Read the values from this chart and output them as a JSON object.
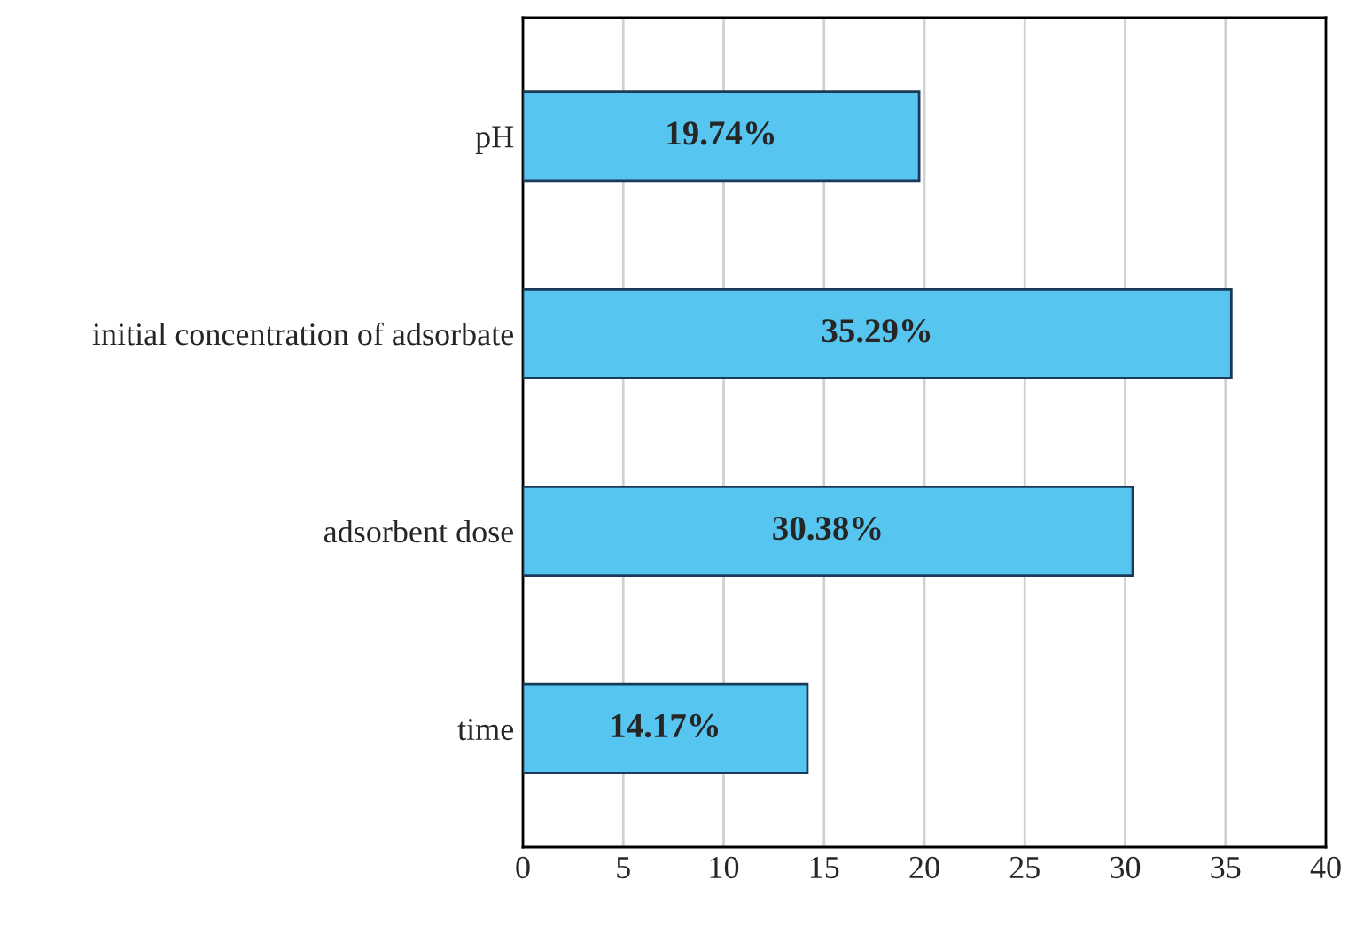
{
  "chart_data": {
    "type": "bar",
    "orientation": "horizontal",
    "categories": [
      "pH",
      "initial concentration of adsorbate",
      "adsorbent dose",
      "time"
    ],
    "values": [
      19.74,
      35.29,
      30.38,
      14.17
    ],
    "value_labels": [
      "19.74%",
      "35.29%",
      "30.38%",
      "14.17%"
    ],
    "color": "#56c5f0",
    "xlim": [
      0,
      40
    ],
    "xticks": [
      0,
      5,
      10,
      15,
      20,
      25,
      30,
      35,
      40
    ],
    "grid": "x"
  }
}
